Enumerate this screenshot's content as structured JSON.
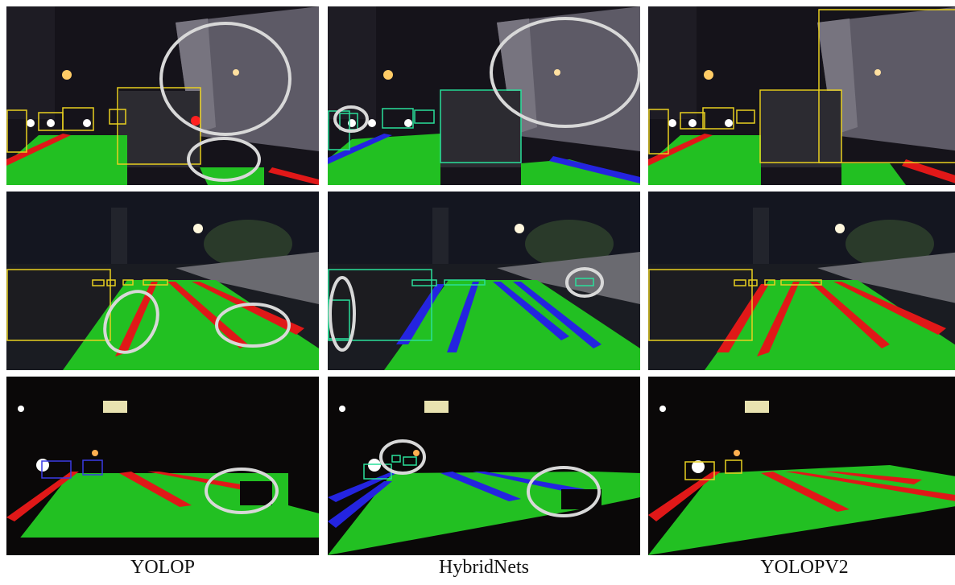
{
  "columns": [
    {
      "label": "YOLOP",
      "id": "yolop"
    },
    {
      "label": "HybridNets",
      "id": "hybridnets"
    },
    {
      "label": "YOLOPV2",
      "id": "yolopv2"
    }
  ],
  "rows": [
    {
      "id": "truck-scene"
    },
    {
      "id": "parked-car-scene"
    },
    {
      "id": "dark-road-scene"
    }
  ],
  "colors": {
    "drivable_area": "#22c022",
    "lane_red": "#e01818",
    "lane_blue": "#2424e0",
    "box_yellow": "#e8d020",
    "box_green": "#2adf9a",
    "box_blue": "#3a3ae6",
    "highlight_ellipse": "#d8d8d8"
  }
}
